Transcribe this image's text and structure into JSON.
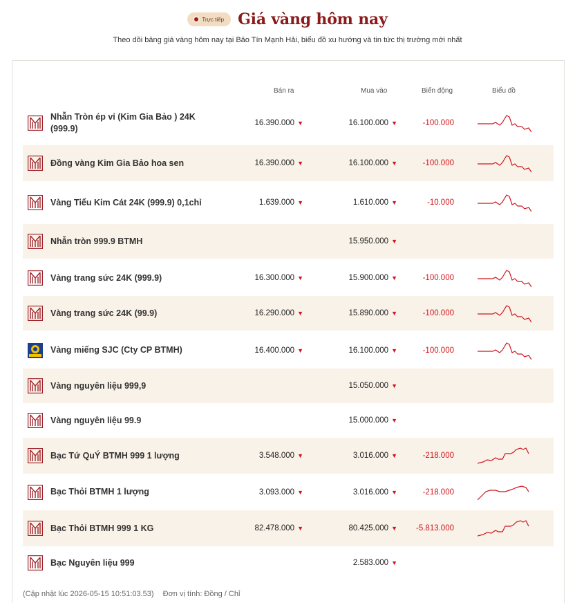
{
  "header": {
    "live_label": "Trực tiếp",
    "title": "Giá vàng hôm nay",
    "subtitle": "Theo dõi bảng giá vàng hôm nay tại Bảo Tín Mạnh Hải, biểu đồ xu hướng và tin tức thị trường mới nhất"
  },
  "table": {
    "columns": {
      "sell": "Bán ra",
      "buy": "Mua vào",
      "change": "Biến động",
      "chart": "Biểu đồ"
    },
    "rows": [
      {
        "name": "Nhẫn Tròn ép vỉ (Kim Gia Bảo ) 24K (999.9)",
        "sell": "16.390.000",
        "buy": "16.100.000",
        "change": "-100.000",
        "logo": "btmh-logo",
        "trend": "gold-down"
      },
      {
        "name": "Đồng vàng Kim Gia Bảo hoa sen",
        "sell": "16.390.000",
        "buy": "16.100.000",
        "change": "-100.000",
        "logo": "btmh-logo",
        "trend": "gold-down"
      },
      {
        "name": "Vàng Tiểu Kim Cát 24K (999.9) 0,1chỉ",
        "sell": "1.639.000",
        "buy": "1.610.000",
        "change": "-10.000",
        "logo": "btmh-logo",
        "trend": "gold-down"
      },
      {
        "name": "Nhẫn tròn 999.9 BTMH",
        "sell": "",
        "buy": "15.950.000",
        "change": "",
        "logo": "btmh-logo",
        "trend": ""
      },
      {
        "name": "Vàng trang sức 24K (999.9)",
        "sell": "16.300.000",
        "buy": "15.900.000",
        "change": "-100.000",
        "logo": "btmh-logo",
        "trend": "gold-down"
      },
      {
        "name": "Vàng trang sức 24K (99.9)",
        "sell": "16.290.000",
        "buy": "15.890.000",
        "change": "-100.000",
        "logo": "btmh-logo",
        "trend": "gold-down"
      },
      {
        "name": "Vàng miếng SJC (Cty CP BTMH)",
        "sell": "16.400.000",
        "buy": "16.100.000",
        "change": "-100.000",
        "logo": "sjc-logo",
        "trend": "gold-down"
      },
      {
        "name": "Vàng nguyên liệu 999,9",
        "sell": "",
        "buy": "15.050.000",
        "change": "",
        "logo": "btmh-logo",
        "trend": ""
      },
      {
        "name": "Vàng nguyên liệu 99.9",
        "sell": "",
        "buy": "15.000.000",
        "change": "",
        "logo": "btmh-logo",
        "trend": ""
      },
      {
        "name": "Bạc Tứ QuÝ BTMH 999 1 lượng",
        "sell": "3.548.000",
        "buy": "3.016.000",
        "change": "-218.000",
        "logo": "btmh-logo",
        "trend": "silver-up"
      },
      {
        "name": "Bạc Thỏi BTMH 1 lượng",
        "sell": "3.093.000",
        "buy": "3.016.000",
        "change": "-218.000",
        "logo": "btmh-logo",
        "trend": "silver-up2"
      },
      {
        "name": "Bạc Thỏi BTMH 999 1 KG",
        "sell": "82.478.000",
        "buy": "80.425.000",
        "change": "-5.813.000",
        "logo": "btmh-logo",
        "trend": "silver-up"
      },
      {
        "name": "Bạc Nguyên liệu 999",
        "sell": "",
        "buy": "2.583.000",
        "change": "",
        "logo": "btmh-logo",
        "trend": ""
      }
    ]
  },
  "footer": {
    "updated": "(Cập nhật lúc 2026-05-15 10:51:03.53)",
    "unit": "Đơn vị tính: Đồng / Chỉ"
  },
  "colors": {
    "accent": "#8c1a1a",
    "down": "#d0141c",
    "row_alt": "#f9f2e8",
    "badge": "#f2dcc2"
  }
}
